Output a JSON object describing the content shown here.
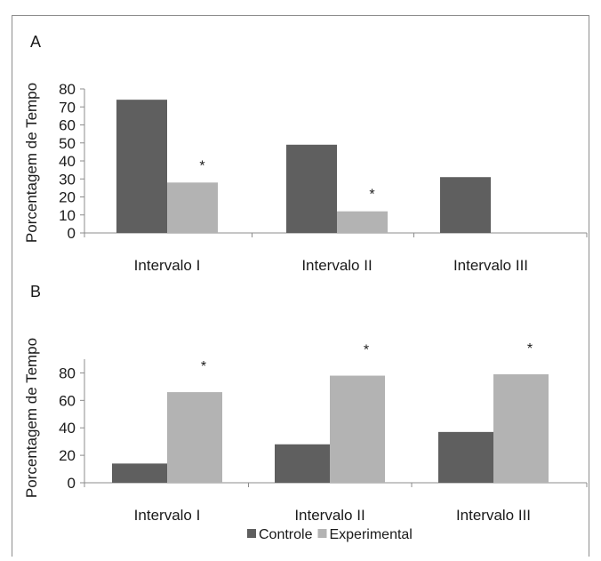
{
  "chart_data": [
    {
      "panel_label": "A",
      "type": "bar",
      "ylabel": "Porcentagem de Tempo",
      "ylim": [
        0,
        80
      ],
      "yticks": [
        "0",
        "10",
        "20",
        "30",
        "40",
        "50",
        "60",
        "70",
        "80"
      ],
      "categories": [
        "Intervalo I",
        "Intervalo II",
        "Intervalo III"
      ],
      "series": [
        {
          "name": "Controle",
          "color": "#5f5f5f",
          "values": [
            74,
            49,
            31
          ]
        },
        {
          "name": "Experimental",
          "color": "#b3b3b3",
          "values": [
            28,
            12,
            0
          ]
        }
      ],
      "annotations": [
        {
          "text": "*",
          "category": "Intervalo I",
          "series": "Experimental"
        },
        {
          "text": "*",
          "category": "Intervalo II",
          "series": "Experimental"
        }
      ],
      "grid": false
    },
    {
      "panel_label": "B",
      "type": "bar",
      "ylabel": "Porcentagem de Tempo",
      "ylim": [
        0,
        90
      ],
      "yticks": [
        "0",
        "20",
        "40",
        "60",
        "80"
      ],
      "categories": [
        "Intervalo I",
        "Intervalo II",
        "Intervalo III"
      ],
      "series": [
        {
          "name": "Controle",
          "color": "#5f5f5f",
          "values": [
            14,
            28,
            37
          ]
        },
        {
          "name": "Experimental",
          "color": "#b3b3b3",
          "values": [
            66,
            78,
            79
          ]
        }
      ],
      "annotations": [
        {
          "text": "*",
          "category": "Intervalo I",
          "series": "Experimental"
        },
        {
          "text": "*",
          "category": "Intervalo II",
          "series": "Experimental"
        },
        {
          "text": "*",
          "category": "Intervalo III",
          "series": "Experimental"
        }
      ],
      "grid": false,
      "legend_position": "bottom"
    }
  ],
  "legend": [
    {
      "name": "Controle",
      "color": "#5f5f5f"
    },
    {
      "name": "Experimental",
      "color": "#b3b3b3"
    }
  ]
}
